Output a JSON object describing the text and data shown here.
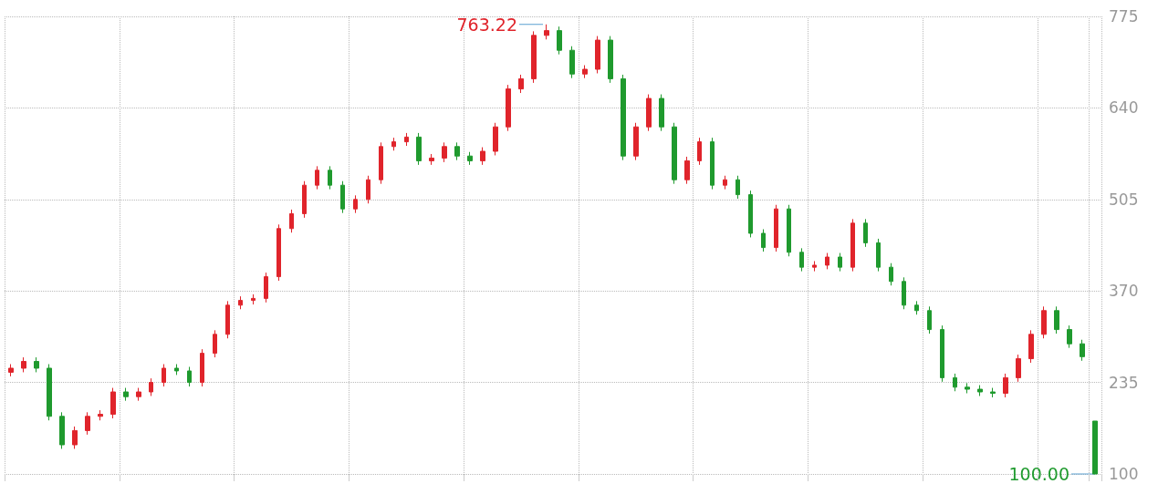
{
  "chart_data": {
    "type": "candlestick",
    "categories": [
      null,
      null,
      null,
      null,
      null,
      null,
      null,
      null,
      null,
      null,
      null,
      null,
      null,
      null,
      null,
      null,
      null,
      null,
      null,
      null,
      null,
      null,
      null,
      null,
      null,
      null,
      null,
      null,
      null,
      null,
      null,
      null,
      null,
      null,
      null,
      null,
      null,
      null,
      null,
      null,
      null,
      null,
      null,
      null,
      null,
      null,
      null,
      null,
      null,
      null,
      null,
      null,
      null,
      null,
      null,
      null,
      null,
      null,
      null,
      null,
      null,
      null,
      null,
      null,
      null,
      null,
      null,
      null,
      null,
      null,
      null,
      null,
      null,
      null,
      null,
      null,
      null,
      null,
      null,
      null,
      null,
      null,
      null,
      null,
      null,
      null
    ],
    "ohlc": [
      [
        250,
        262,
        244,
        256
      ],
      [
        256,
        272,
        250,
        266
      ],
      [
        266,
        272,
        250,
        256
      ],
      [
        256,
        262,
        179,
        185
      ],
      [
        185,
        191,
        137,
        143
      ],
      [
        143,
        170,
        137,
        164
      ],
      [
        164,
        191,
        158,
        185
      ],
      [
        185,
        194,
        179,
        188
      ],
      [
        188,
        227,
        182,
        221
      ],
      [
        221,
        227,
        208,
        214
      ],
      [
        214,
        227,
        208,
        221
      ],
      [
        221,
        241,
        215,
        235
      ],
      [
        235,
        262,
        229,
        256
      ],
      [
        256,
        262,
        246,
        252
      ],
      [
        252,
        258,
        229,
        235
      ],
      [
        235,
        284,
        229,
        278
      ],
      [
        278,
        312,
        272,
        306
      ],
      [
        306,
        355,
        300,
        349
      ],
      [
        349,
        362,
        343,
        356
      ],
      [
        356,
        365,
        350,
        359
      ],
      [
        359,
        397,
        353,
        391
      ],
      [
        391,
        468,
        385,
        462
      ],
      [
        462,
        490,
        456,
        484
      ],
      [
        484,
        532,
        478,
        526
      ],
      [
        526,
        554,
        520,
        548
      ],
      [
        548,
        554,
        520,
        526
      ],
      [
        526,
        532,
        485,
        491
      ],
      [
        491,
        511,
        485,
        505
      ],
      [
        505,
        540,
        499,
        534
      ],
      [
        534,
        589,
        528,
        583
      ],
      [
        583,
        596,
        577,
        590
      ],
      [
        590,
        603,
        584,
        597
      ],
      [
        597,
        603,
        556,
        562
      ],
      [
        562,
        572,
        556,
        566
      ],
      [
        566,
        589,
        560,
        583
      ],
      [
        583,
        589,
        563,
        569
      ],
      [
        569,
        575,
        556,
        562
      ],
      [
        562,
        582,
        556,
        576
      ],
      [
        576,
        618,
        570,
        612
      ],
      [
        612,
        674,
        606,
        668
      ],
      [
        668,
        689,
        662,
        683
      ],
      [
        683,
        753,
        677,
        747
      ],
      [
        747,
        763.22,
        741,
        754
      ],
      [
        754,
        760,
        719,
        725
      ],
      [
        725,
        731,
        684,
        690
      ],
      [
        690,
        703,
        684,
        697
      ],
      [
        697,
        746,
        691,
        740
      ],
      [
        740,
        746,
        677,
        683
      ],
      [
        683,
        689,
        563,
        569
      ],
      [
        569,
        618,
        563,
        612
      ],
      [
        612,
        660,
        606,
        654
      ],
      [
        654,
        660,
        606,
        612
      ],
      [
        612,
        618,
        528,
        534
      ],
      [
        534,
        568,
        528,
        562
      ],
      [
        562,
        596,
        556,
        590
      ],
      [
        590,
        596,
        520,
        526
      ],
      [
        526,
        540,
        520,
        534
      ],
      [
        534,
        540,
        506,
        512
      ],
      [
        512,
        518,
        449,
        455
      ],
      [
        455,
        461,
        428,
        434
      ],
      [
        434,
        497,
        428,
        491
      ],
      [
        491,
        497,
        421,
        427
      ],
      [
        427,
        433,
        399,
        405
      ],
      [
        405,
        414,
        399,
        408
      ],
      [
        408,
        426,
        402,
        420
      ],
      [
        420,
        426,
        399,
        405
      ],
      [
        405,
        476,
        399,
        470
      ],
      [
        470,
        476,
        435,
        441
      ],
      [
        441,
        447,
        399,
        405
      ],
      [
        405,
        411,
        378,
        384
      ],
      [
        384,
        390,
        343,
        349
      ],
      [
        349,
        355,
        335,
        341
      ],
      [
        341,
        347,
        307,
        313
      ],
      [
        313,
        319,
        236,
        242
      ],
      [
        242,
        248,
        222,
        228
      ],
      [
        228,
        234,
        219,
        225
      ],
      [
        225,
        231,
        215,
        221
      ],
      [
        221,
        227,
        213,
        219
      ],
      [
        219,
        248,
        213,
        242
      ],
      [
        242,
        276,
        236,
        270
      ],
      [
        270,
        312,
        264,
        306
      ],
      [
        306,
        347,
        300,
        341
      ],
      [
        341,
        347,
        307,
        313
      ],
      [
        313,
        319,
        286,
        292
      ],
      [
        292,
        298,
        267,
        273
      ],
      [
        178,
        178,
        100,
        100
      ]
    ],
    "colors": [
      "#e0242b",
      "#e0242b",
      "#1f9a2e",
      "#1f9a2e",
      "#1f9a2e",
      "#e0242b",
      "#e0242b",
      "#e0242b",
      "#e0242b",
      "#1f9a2e",
      "#e0242b",
      "#e0242b",
      "#e0242b",
      "#1f9a2e",
      "#1f9a2e",
      "#e0242b",
      "#e0242b",
      "#e0242b",
      "#e0242b",
      "#e0242b",
      "#e0242b",
      "#e0242b",
      "#e0242b",
      "#e0242b",
      "#e0242b",
      "#1f9a2e",
      "#1f9a2e",
      "#e0242b",
      "#e0242b",
      "#e0242b",
      "#e0242b",
      "#e0242b",
      "#1f9a2e",
      "#e0242b",
      "#e0242b",
      "#1f9a2e",
      "#1f9a2e",
      "#e0242b",
      "#e0242b",
      "#e0242b",
      "#e0242b",
      "#e0242b",
      "#e0242b",
      "#1f9a2e",
      "#1f9a2e",
      "#e0242b",
      "#e0242b",
      "#1f9a2e",
      "#1f9a2e",
      "#e0242b",
      "#e0242b",
      "#1f9a2e",
      "#1f9a2e",
      "#e0242b",
      "#e0242b",
      "#1f9a2e",
      "#e0242b",
      "#1f9a2e",
      "#1f9a2e",
      "#1f9a2e",
      "#e0242b",
      "#1f9a2e",
      "#1f9a2e",
      "#e0242b",
      "#e0242b",
      "#1f9a2e",
      "#e0242b",
      "#1f9a2e",
      "#1f9a2e",
      "#1f9a2e",
      "#1f9a2e",
      "#1f9a2e",
      "#1f9a2e",
      "#1f9a2e",
      "#1f9a2e",
      "#1f9a2e",
      "#1f9a2e",
      "#1f9a2e",
      "#e0242b",
      "#e0242b",
      "#e0242b",
      "#e0242b",
      "#1f9a2e",
      "#1f9a2e",
      "#1f9a2e",
      "#1f9a2e"
    ],
    "ylim": [
      100,
      775
    ],
    "yticks": [
      100,
      235,
      370,
      505,
      640,
      775
    ],
    "grid": true,
    "annotations": [
      "763.22",
      "100.00"
    ]
  }
}
